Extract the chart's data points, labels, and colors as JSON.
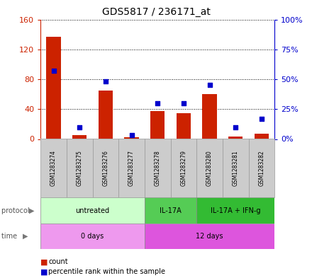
{
  "title": "GDS5817 / 236171_at",
  "samples": [
    "GSM1283274",
    "GSM1283275",
    "GSM1283276",
    "GSM1283277",
    "GSM1283278",
    "GSM1283279",
    "GSM1283280",
    "GSM1283281",
    "GSM1283282"
  ],
  "counts": [
    137,
    5,
    65,
    2,
    37,
    35,
    60,
    3,
    7
  ],
  "percentiles": [
    57,
    10,
    48,
    3,
    30,
    30,
    45,
    10,
    17
  ],
  "ylim_left": [
    0,
    160
  ],
  "ylim_right": [
    0,
    100
  ],
  "yticks_left": [
    0,
    40,
    80,
    120,
    160
  ],
  "yticks_right": [
    0,
    25,
    50,
    75,
    100
  ],
  "yticklabels_left": [
    "0",
    "40",
    "80",
    "120",
    "160"
  ],
  "yticklabels_right": [
    "0%",
    "25%",
    "50%",
    "75%",
    "100%"
  ],
  "bar_color": "#cc2200",
  "dot_color": "#0000cc",
  "protocol_groups": [
    {
      "label": "untreated",
      "start": 0,
      "end": 4,
      "color": "#ccffcc"
    },
    {
      "label": "IL-17A",
      "start": 4,
      "end": 6,
      "color": "#55cc55"
    },
    {
      "label": "IL-17A + IFN-g",
      "start": 6,
      "end": 9,
      "color": "#33bb33"
    }
  ],
  "time_groups": [
    {
      "label": "0 days",
      "start": 0,
      "end": 4,
      "color": "#ee99ee"
    },
    {
      "label": "12 days",
      "start": 4,
      "end": 9,
      "color": "#dd55dd"
    }
  ],
  "protocol_label": "protocol",
  "time_label": "time",
  "legend_count_label": "count",
  "legend_pct_label": "percentile rank within the sample",
  "tick_color_left": "#cc2200",
  "tick_color_right": "#0000cc",
  "sample_box_color": "#cccccc",
  "sample_box_edge": "#999999"
}
